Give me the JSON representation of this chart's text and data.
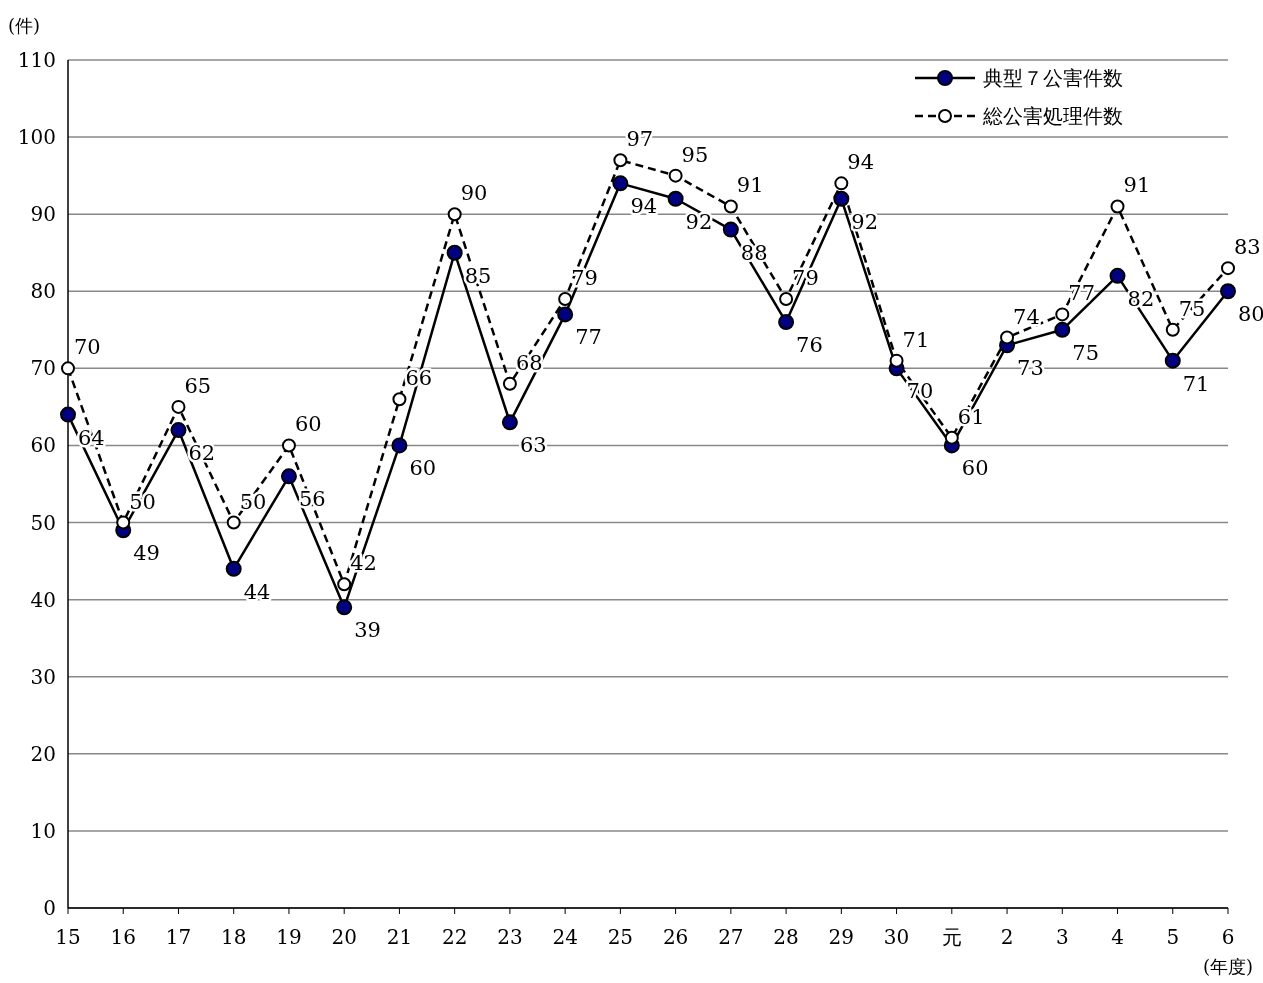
{
  "chart_data": {
    "type": "line",
    "ylabel": "(件)",
    "xlabel": "(年度)",
    "categories": [
      "15",
      "16",
      "17",
      "18",
      "19",
      "20",
      "21",
      "22",
      "23",
      "24",
      "25",
      "26",
      "27",
      "28",
      "29",
      "30",
      "元",
      "2",
      "3",
      "4",
      "5",
      "6"
    ],
    "ylim": [
      0,
      110
    ],
    "yticks": [
      0,
      10,
      20,
      30,
      40,
      50,
      60,
      70,
      80,
      90,
      100,
      110
    ],
    "grid": "y",
    "legend": "top right",
    "data_labels": true,
    "series": [
      {
        "name": "典型７公害件数",
        "color": "#000080",
        "marker": "circle",
        "line_style": "solid",
        "values": [
          64,
          49,
          62,
          44,
          56,
          39,
          60,
          85,
          63,
          77,
          94,
          92,
          88,
          76,
          92,
          70,
          60,
          73,
          75,
          82,
          71,
          80
        ]
      },
      {
        "name": "総公害処理件数",
        "color": "#ffffff",
        "marker": "circle",
        "line_style": "dashed",
        "values": [
          70,
          50,
          65,
          50,
          60,
          42,
          66,
          90,
          68,
          79,
          97,
          95,
          91,
          79,
          94,
          71,
          61,
          74,
          77,
          91,
          75,
          83
        ]
      }
    ]
  }
}
